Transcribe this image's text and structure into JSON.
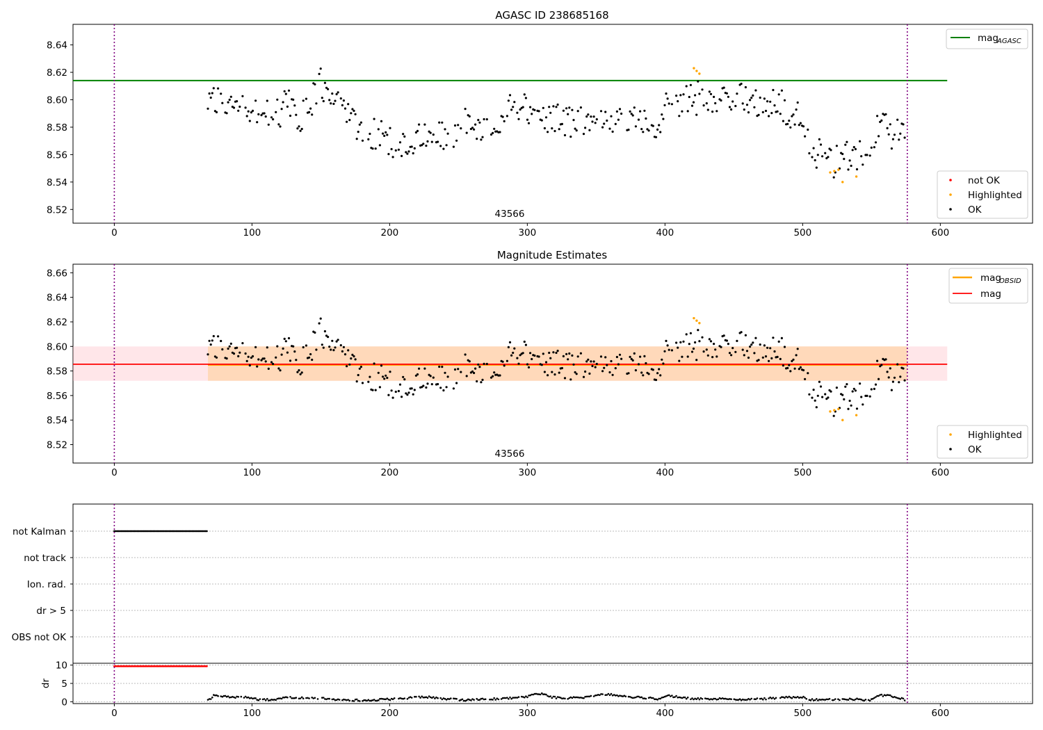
{
  "chart_data": [
    {
      "type": "scatter",
      "title": "AGASC ID 238685168",
      "annotation": "43566",
      "xlim": [
        -30,
        667
      ],
      "ylim": [
        8.51,
        8.655
      ],
      "xticks": [
        0,
        100,
        200,
        300,
        400,
        500,
        600
      ],
      "yticks": [
        8.52,
        8.54,
        8.56,
        8.58,
        8.6,
        8.62,
        8.64
      ],
      "vlines": [
        0,
        576
      ],
      "hlines": [
        {
          "name": "mag_AGASC",
          "y": 8.614,
          "x_range": [
            -30,
            605
          ],
          "color": "#008000"
        }
      ],
      "legend_upper": [
        {
          "label": "mag",
          "subscript": "AGASC",
          "color": "#008000"
        }
      ],
      "legend_lower": [
        {
          "label": "not OK",
          "color": "#ff0000"
        },
        {
          "label": "Highlighted",
          "color": "#ffa500"
        },
        {
          "label": "OK",
          "color": "#000000"
        }
      ],
      "highlighted_points": [
        [
          421,
          8.623
        ],
        [
          423,
          8.621
        ],
        [
          425,
          8.619
        ],
        [
          520,
          8.547
        ],
        [
          523,
          8.548
        ],
        [
          526,
          8.549
        ],
        [
          529,
          8.54
        ],
        [
          539,
          8.544
        ]
      ],
      "ok_trend": [
        [
          68,
          8.598
        ],
        [
          75,
          8.6
        ],
        [
          90,
          8.597
        ],
        [
          105,
          8.592
        ],
        [
          115,
          8.59
        ],
        [
          125,
          8.596
        ],
        [
          135,
          8.588
        ],
        [
          142,
          8.595
        ],
        [
          150,
          8.612
        ],
        [
          157,
          8.6
        ],
        [
          165,
          8.592
        ],
        [
          172,
          8.592
        ],
        [
          177,
          8.58
        ],
        [
          185,
          8.572
        ],
        [
          195,
          8.572
        ],
        [
          205,
          8.569
        ],
        [
          215,
          8.567
        ],
        [
          225,
          8.576
        ],
        [
          235,
          8.574
        ],
        [
          245,
          8.574
        ],
        [
          255,
          8.579
        ],
        [
          270,
          8.582
        ],
        [
          280,
          8.587
        ],
        [
          290,
          8.595
        ],
        [
          300,
          8.595
        ],
        [
          310,
          8.588
        ],
        [
          325,
          8.583
        ],
        [
          340,
          8.585
        ],
        [
          355,
          8.588
        ],
        [
          370,
          8.585
        ],
        [
          385,
          8.584
        ],
        [
          395,
          8.581
        ],
        [
          405,
          8.594
        ],
        [
          415,
          8.6
        ],
        [
          425,
          8.605
        ],
        [
          435,
          8.602
        ],
        [
          445,
          8.603
        ],
        [
          455,
          8.604
        ],
        [
          465,
          8.598
        ],
        [
          475,
          8.596
        ],
        [
          485,
          8.592
        ],
        [
          495,
          8.588
        ],
        [
          500,
          8.585
        ],
        [
          505,
          8.562
        ],
        [
          515,
          8.561
        ],
        [
          525,
          8.56
        ],
        [
          535,
          8.559
        ],
        [
          545,
          8.56
        ],
        [
          552,
          8.562
        ],
        [
          555,
          8.588
        ],
        [
          565,
          8.58
        ],
        [
          575,
          8.582
        ]
      ]
    },
    {
      "type": "scatter",
      "title": "Magnitude Estimates",
      "annotation": "43566",
      "xlim": [
        -30,
        667
      ],
      "ylim": [
        8.505,
        8.667
      ],
      "xticks": [
        0,
        100,
        200,
        300,
        400,
        500,
        600
      ],
      "yticks": [
        8.52,
        8.54,
        8.56,
        8.58,
        8.6,
        8.62,
        8.64,
        8.66
      ],
      "vlines": [
        0,
        576
      ],
      "hlines": [
        {
          "name": "mag_OBSID",
          "y": 8.585,
          "x_range": [
            68,
            576
          ],
          "color": "#ffa500"
        },
        {
          "name": "mag",
          "y": 8.5855,
          "x_range": [
            -30,
            605
          ],
          "color": "#ff0000"
        }
      ],
      "bands": [
        {
          "name": "mag band",
          "y": [
            8.572,
            8.6
          ],
          "x_range": [
            -30,
            605
          ],
          "color": "#ffb6c1"
        },
        {
          "name": "mag_OBSID band",
          "y": [
            8.572,
            8.6
          ],
          "x_range": [
            68,
            576
          ],
          "color": "#ffa500"
        }
      ],
      "legend_upper": [
        {
          "label": "mag",
          "subscript": "OBSID",
          "color": "#ffa500"
        },
        {
          "label": "mag",
          "subscript": "",
          "color": "#ff0000"
        }
      ],
      "legend_lower": [
        {
          "label": "Highlighted",
          "color": "#ffa500"
        },
        {
          "label": "OK",
          "color": "#000000"
        }
      ]
    },
    {
      "type": "scatter",
      "title": "",
      "xlim": [
        -30,
        667
      ],
      "vlines": [
        0,
        576
      ],
      "categories": [
        "not Kalman",
        "not track",
        "Ion. rad.",
        "dr > 5",
        "OBS not OK"
      ],
      "flag_segments": [
        {
          "category": "not Kalman",
          "x_range": [
            0,
            68
          ]
        }
      ]
    },
    {
      "type": "scatter",
      "title": "",
      "ylabel": "dr",
      "xlim": [
        -30,
        667
      ],
      "ylim": [
        -0.5,
        10.5
      ],
      "xticks": [
        0,
        100,
        200,
        300,
        400,
        500,
        600
      ],
      "yticks": [
        0,
        5,
        10
      ],
      "vlines": [
        0,
        576
      ],
      "dr_red": {
        "x_range": [
          0,
          68
        ],
        "value": 9.7
      },
      "dr_trend": [
        [
          68,
          0.3
        ],
        [
          72,
          1.6
        ],
        [
          85,
          1.3
        ],
        [
          95,
          1.2
        ],
        [
          105,
          0.6
        ],
        [
          115,
          0.5
        ],
        [
          125,
          1.3
        ],
        [
          135,
          1.0
        ],
        [
          150,
          1.0
        ],
        [
          165,
          0.5
        ],
        [
          180,
          0.4
        ],
        [
          195,
          0.6
        ],
        [
          210,
          0.9
        ],
        [
          225,
          1.4
        ],
        [
          240,
          0.8
        ],
        [
          255,
          0.4
        ],
        [
          270,
          0.7
        ],
        [
          285,
          0.9
        ],
        [
          300,
          1.4
        ],
        [
          305,
          2.2
        ],
        [
          312,
          2.1
        ],
        [
          318,
          1.2
        ],
        [
          330,
          1.0
        ],
        [
          345,
          1.2
        ],
        [
          350,
          2.0
        ],
        [
          358,
          2.1
        ],
        [
          366,
          1.6
        ],
        [
          380,
          1.2
        ],
        [
          395,
          0.8
        ],
        [
          402,
          1.7
        ],
        [
          415,
          1.0
        ],
        [
          430,
          0.7
        ],
        [
          445,
          0.8
        ],
        [
          460,
          0.6
        ],
        [
          475,
          0.9
        ],
        [
          485,
          1.1
        ],
        [
          500,
          1.3
        ],
        [
          505,
          0.5
        ],
        [
          520,
          0.6
        ],
        [
          535,
          0.7
        ],
        [
          550,
          0.5
        ],
        [
          556,
          1.8
        ],
        [
          565,
          1.5
        ],
        [
          576,
          0.4
        ]
      ]
    }
  ],
  "ticks_text": {
    "x": [
      "0",
      "100",
      "200",
      "300",
      "400",
      "500",
      "600"
    ],
    "y1": [
      "8.52",
      "8.54",
      "8.56",
      "8.58",
      "8.60",
      "8.62",
      "8.64"
    ],
    "y2": [
      "8.52",
      "8.54",
      "8.56",
      "8.58",
      "8.60",
      "8.62",
      "8.64",
      "8.66"
    ],
    "y4": [
      "0",
      "5",
      "10"
    ]
  }
}
